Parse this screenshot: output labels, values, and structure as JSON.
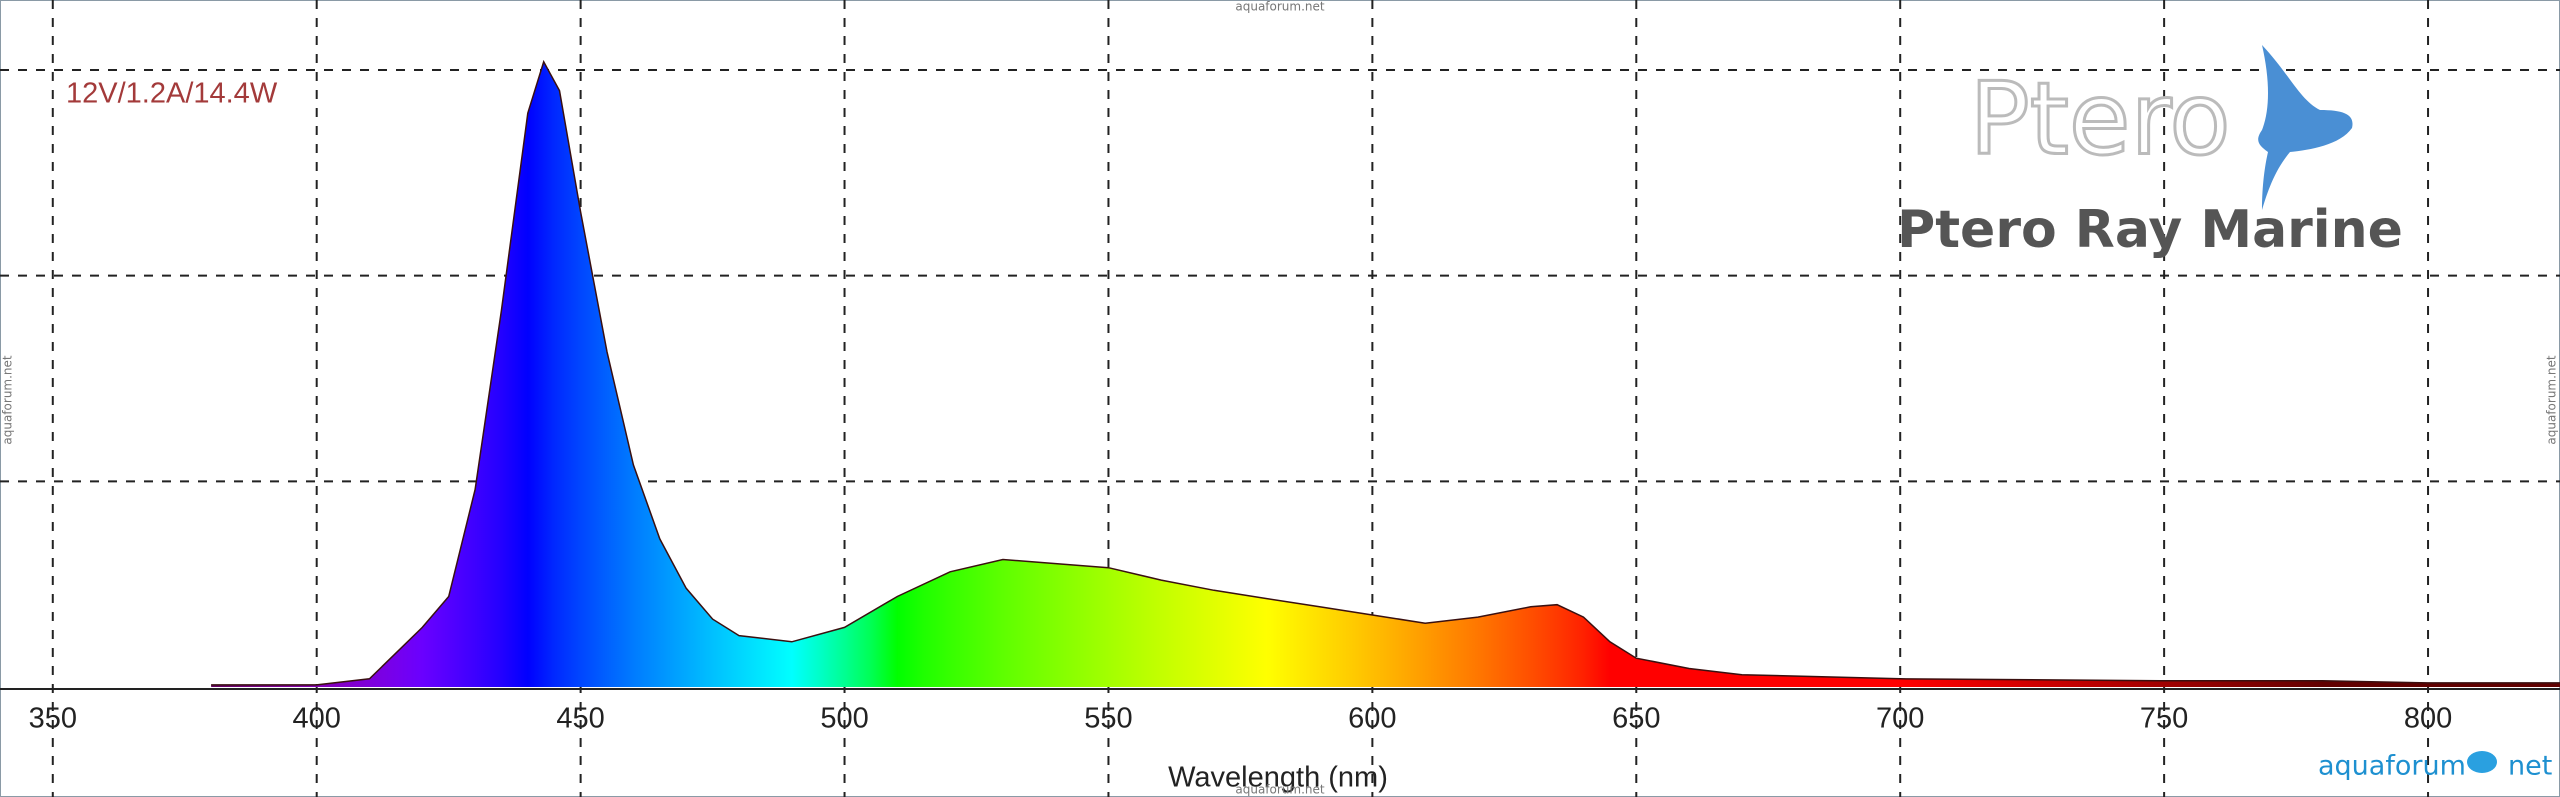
{
  "chart_data": {
    "type": "area",
    "annotation": "12V/1.2A/14.4W",
    "x_label": "Wavelength (nm)",
    "logo": "Ptero",
    "brand": "Ptero Ray Marine",
    "watermark": "aquaforum.net",
    "footer_logo": [
      "aquaforum",
      "net"
    ],
    "x": [
      380,
      400,
      410,
      420,
      425,
      430,
      435,
      440,
      443,
      446,
      450,
      455,
      460,
      465,
      470,
      475,
      480,
      490,
      500,
      510,
      520,
      530,
      540,
      550,
      560,
      570,
      580,
      590,
      600,
      610,
      620,
      630,
      635,
      640,
      645,
      650,
      660,
      670,
      700,
      750,
      780,
      800,
      825
    ],
    "values": [
      0.01,
      0.01,
      0.04,
      0.29,
      0.44,
      0.96,
      1.83,
      2.79,
      3.04,
      2.9,
      2.31,
      1.63,
      1.08,
      0.72,
      0.48,
      0.33,
      0.25,
      0.22,
      0.29,
      0.44,
      0.56,
      0.62,
      0.6,
      0.58,
      0.52,
      0.47,
      0.43,
      0.39,
      0.35,
      0.31,
      0.34,
      0.39,
      0.4,
      0.34,
      0.22,
      0.14,
      0.09,
      0.06,
      0.04,
      0.03,
      0.03,
      0.02,
      0.02
    ],
    "xlim": [
      340,
      825
    ],
    "xticks": [
      350,
      400,
      450,
      500,
      550,
      600,
      650,
      700,
      750,
      800
    ],
    "ylim": [
      0,
      3
    ],
    "ygrid": [
      1,
      2,
      3
    ],
    "grid": true,
    "fill": "spectrum",
    "line_color": "#3a1010"
  }
}
